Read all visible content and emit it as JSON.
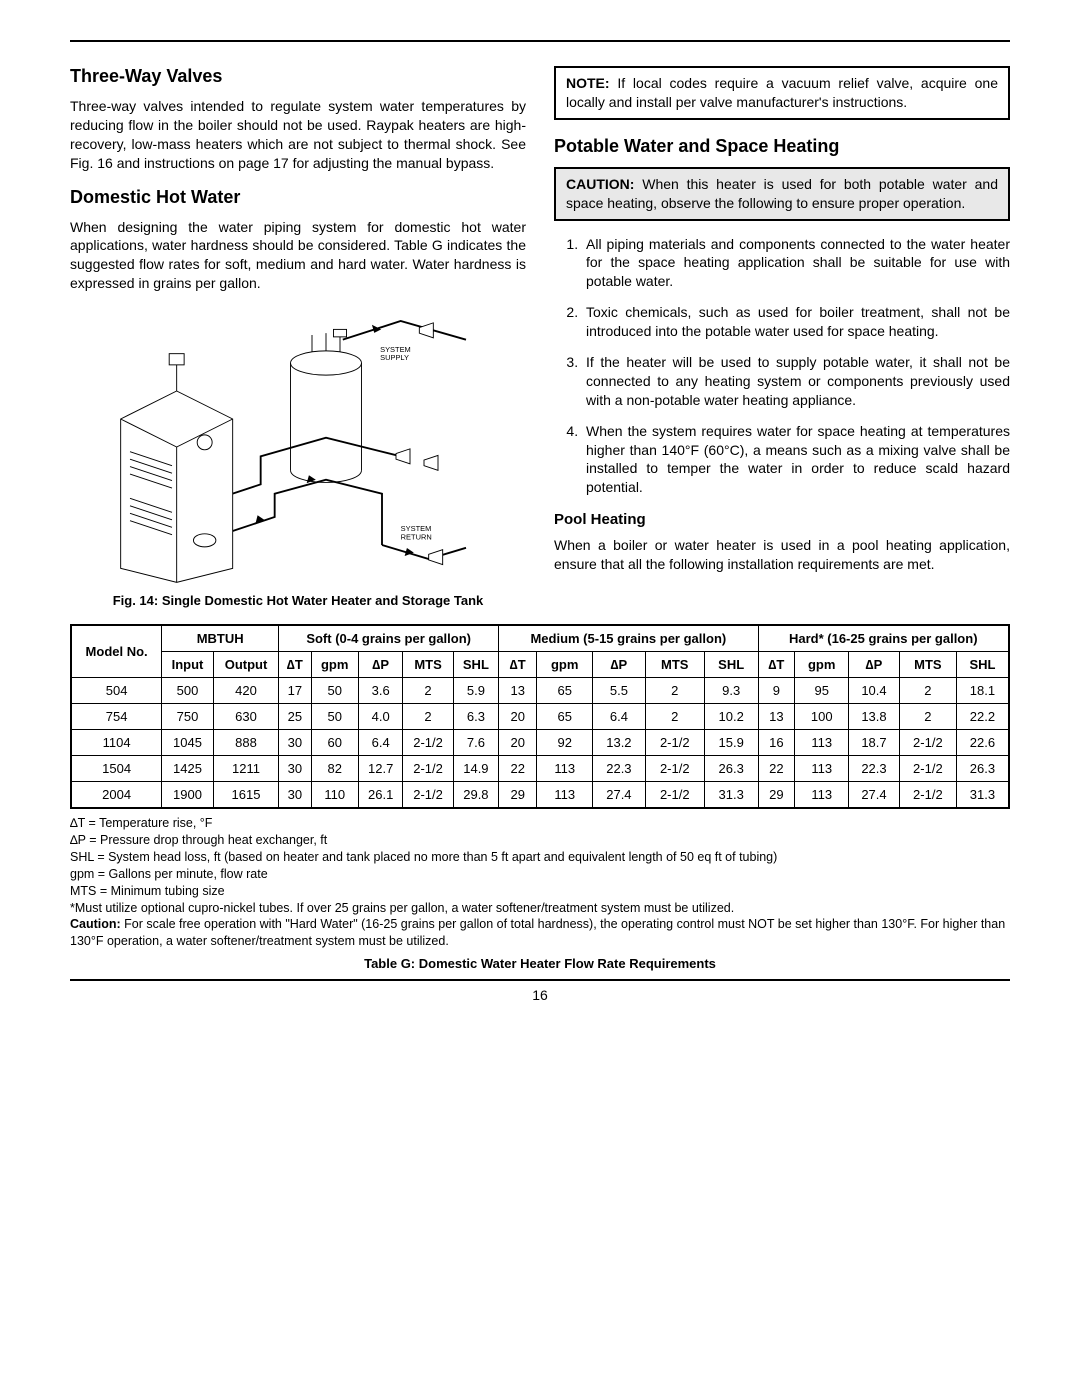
{
  "left": {
    "h1": "Three-Way Valves",
    "p1": "Three-way valves intended to regulate system water temperatures by reducing flow in the boiler should not be used. Raypak heaters are high-recovery, low-mass heaters which are not subject to thermal shock. See Fig. 16 and instructions on page 17 for adjusting the manual bypass.",
    "h2": "Domestic Hot Water",
    "p2": "When designing the water piping system for domestic hot water applications, water hardness should be con­sidered. Table G indicates the suggested flow rates for soft, medium and hard water. Water hardness is ex­pressed in grains per gallon.",
    "fig_label_supply": "SYSTEM SUPPLY",
    "fig_label_return": "SYSTEM RETURN",
    "fig_caption": "Fig. 14: Single Domestic Hot Water Heater and Storage Tank"
  },
  "right": {
    "note_label": "NOTE:",
    "note_text": " If local codes require a vacuum relief valve, acquire one locally and install per valve manufacturer's instructions.",
    "h1": "Potable Water and Space Heating",
    "caution_label": "CAUTION:",
    "caution_text": " When this heater is used for both potable water and space heating, observe the following to ensure proper operation.",
    "items": [
      "All piping materials and components connected to the water heater for the space heating application shall be suitable for use with potable water.",
      "Toxic chemicals, such as used for boiler treatment, shall not be introduced into the potable water used for space heating.",
      "If the heater will be used to supply potable water, it shall not be connected to any heating system or components previously used with a non-potable water heating appliance.",
      "When the system requires water for space heating at temperatures higher than 140°F (60°C), a means such as a mixing valve shall be installed to temper the water in order to reduce scald hazard potential."
    ],
    "h2": "Pool Heating",
    "p_pool": "When a boiler or water heater is used in a pool heat­ing application, ensure that all the following installation requirements are met."
  },
  "table": {
    "head_model": "Model No.",
    "head_mbtuh": "MBTUH",
    "head_soft": "Soft (0-4 grains per gallon)",
    "head_medium": "Medium (5-15 grains per gallon)",
    "head_hard": "Hard* (16-25 grains per gallon)",
    "sub": [
      "Input",
      "Output",
      "∆T",
      "gpm",
      "∆P",
      "MTS",
      "SHL",
      "∆T",
      "gpm",
      "∆P",
      "MTS",
      "SHL",
      "∆T",
      "gpm",
      "∆P",
      "MTS",
      "SHL"
    ],
    "rows": [
      [
        "504",
        "500",
        "420",
        "17",
        "50",
        "3.6",
        "2",
        "5.9",
        "13",
        "65",
        "5.5",
        "2",
        "9.3",
        "9",
        "95",
        "10.4",
        "2",
        "18.1"
      ],
      [
        "754",
        "750",
        "630",
        "25",
        "50",
        "4.0",
        "2",
        "6.3",
        "20",
        "65",
        "6.4",
        "2",
        "10.2",
        "13",
        "100",
        "13.8",
        "2",
        "22.2"
      ],
      [
        "1104",
        "1045",
        "888",
        "30",
        "60",
        "6.4",
        "2-1/2",
        "7.6",
        "20",
        "92",
        "13.2",
        "2-1/2",
        "15.9",
        "16",
        "113",
        "18.7",
        "2-1/2",
        "22.6"
      ],
      [
        "1504",
        "1425",
        "1211",
        "30",
        "82",
        "12.7",
        "2-1/2",
        "14.9",
        "22",
        "113",
        "22.3",
        "2-1/2",
        "26.3",
        "22",
        "113",
        "22.3",
        "2-1/2",
        "26.3"
      ],
      [
        "2004",
        "1900",
        "1615",
        "30",
        "110",
        "26.1",
        "2-1/2",
        "29.8",
        "29",
        "113",
        "27.4",
        "2-1/2",
        "31.3",
        "29",
        "113",
        "27.4",
        "2-1/2",
        "31.3"
      ]
    ]
  },
  "footnotes": {
    "l1": "∆T = Temperature rise, °F",
    "l2": "∆P = Pressure drop through heat exchanger, ft",
    "l3": "SHL = System head loss, ft (based on heater and tank placed no more than 5 ft apart and equivalent length of 50 eq ft of tubing)",
    "l4": "gpm = Gallons per minute, flow rate",
    "l5": "MTS = Minimum tubing size",
    "l6": "*Must utilize optional cupro-nickel tubes. If over 25 grains per gallon, a water softener/treatment system must be utilized.",
    "l7a": "Caution:",
    "l7b": " For scale free operation with \"Hard Water\" (16-25 grains per gallon of total hardness), the operating control must NOT be set higher than 130°F. For higher than 130°F operation, a water softener/treatment system must be utilized.",
    "caption": "Table G: Domestic Water Heater Flow Rate Requirements"
  },
  "pagenum": "16"
}
